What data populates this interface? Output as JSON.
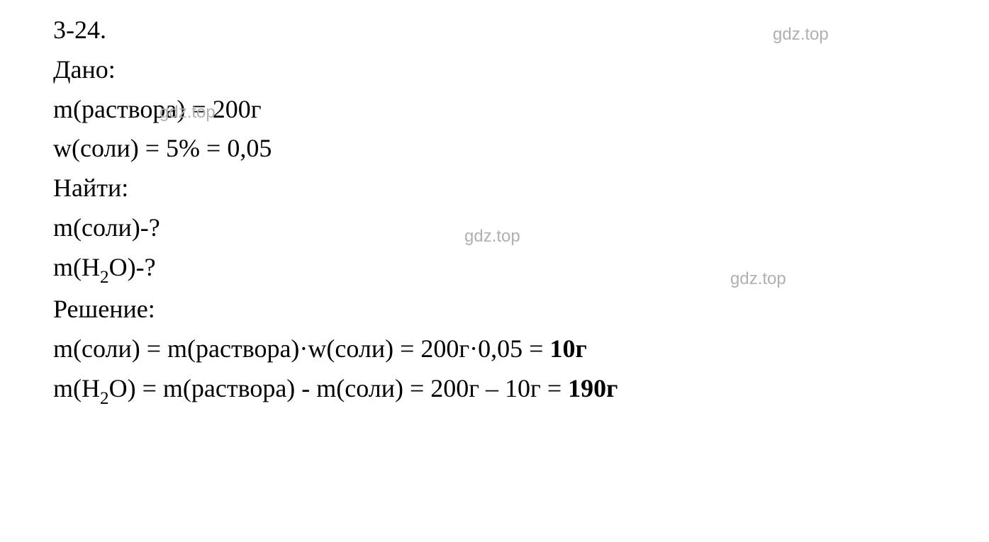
{
  "problem_number": "3-24.",
  "given_label": "Дано:",
  "given": {
    "line1_prefix": "m(раствора) = ",
    "line1_value": "200г",
    "line2_prefix": "w(соли) = ",
    "line2_percent": "5%",
    "line2_equals": " = ",
    "line2_decimal": "0,05"
  },
  "find_label": "Найти:",
  "find": {
    "line1": "m(соли)-?",
    "line2_prefix": "m(H",
    "line2_sub": "2",
    "line2_suffix": "O)-?"
  },
  "solution_label": "Решение:",
  "solution": {
    "line1_prefix": "m(соли) = m(раствора)·w(соли) = 200г·0,05 = ",
    "line1_result": "10г",
    "line2_prefix": "m(H",
    "line2_sub1": "2",
    "line2_mid": "O) = m(раствора) - m(соли) = 200г – 10г = ",
    "line2_result": "190г"
  },
  "watermark_text": "gdz.top",
  "colors": {
    "text": "#000000",
    "background": "#ffffff",
    "watermark": "#b0b0b0"
  },
  "typography": {
    "main_fontsize": 36,
    "watermark_fontsize": 24,
    "font_family": "Times New Roman"
  }
}
